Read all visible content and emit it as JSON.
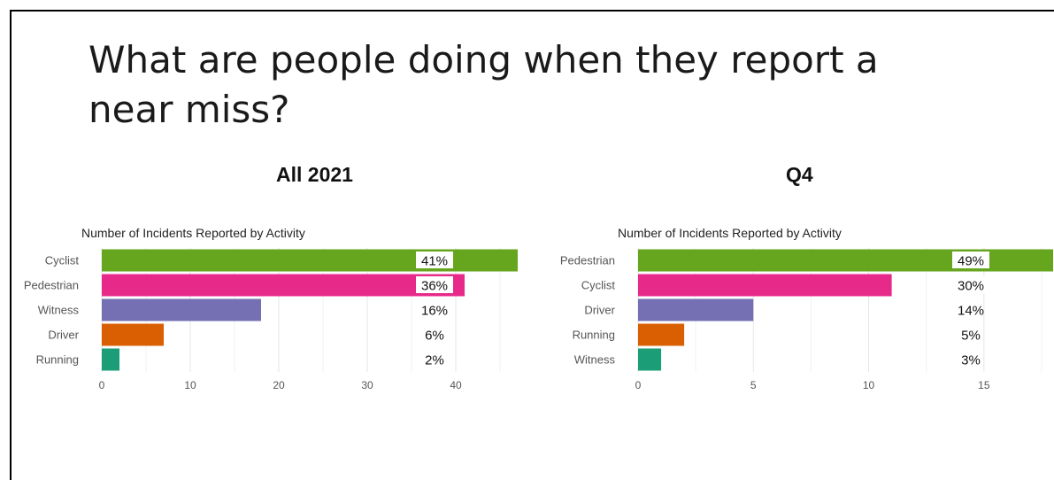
{
  "slide": {
    "title": "What are people doing when they report a near miss?"
  },
  "chart_data": [
    {
      "type": "bar",
      "orientation": "horizontal",
      "panel_title": "All 2021",
      "title": "Number of Incidents Reported by Activity",
      "xlabel": "",
      "ylabel": "",
      "categories": [
        "Cyclist",
        "Pedestrian",
        "Witness",
        "Driver",
        "Running"
      ],
      "values": [
        47,
        41,
        18,
        7,
        2
      ],
      "labels": [
        "41%",
        "36%",
        "16%",
        "6%",
        "2%"
      ],
      "colors": [
        "#66a61e",
        "#e7298a",
        "#7570b3",
        "#d95f02",
        "#1b9e77"
      ],
      "xticks": [
        0,
        10,
        20,
        30,
        40
      ],
      "xlim": [
        0,
        47
      ],
      "grid": true
    },
    {
      "type": "bar",
      "orientation": "horizontal",
      "panel_title": "Q4",
      "title": "Number of Incidents Reported by Activity",
      "xlabel": "",
      "ylabel": "",
      "categories": [
        "Pedestrian",
        "Cyclist",
        "Driver",
        "Running",
        "Witness"
      ],
      "values": [
        18,
        11,
        5,
        2,
        1
      ],
      "labels": [
        "49%",
        "30%",
        "14%",
        "5%",
        "3%"
      ],
      "colors": [
        "#66a61e",
        "#e7298a",
        "#7570b3",
        "#d95f02",
        "#1b9e77"
      ],
      "xticks": [
        0,
        5,
        10,
        15
      ],
      "xlim": [
        0,
        18
      ],
      "grid": true
    }
  ]
}
